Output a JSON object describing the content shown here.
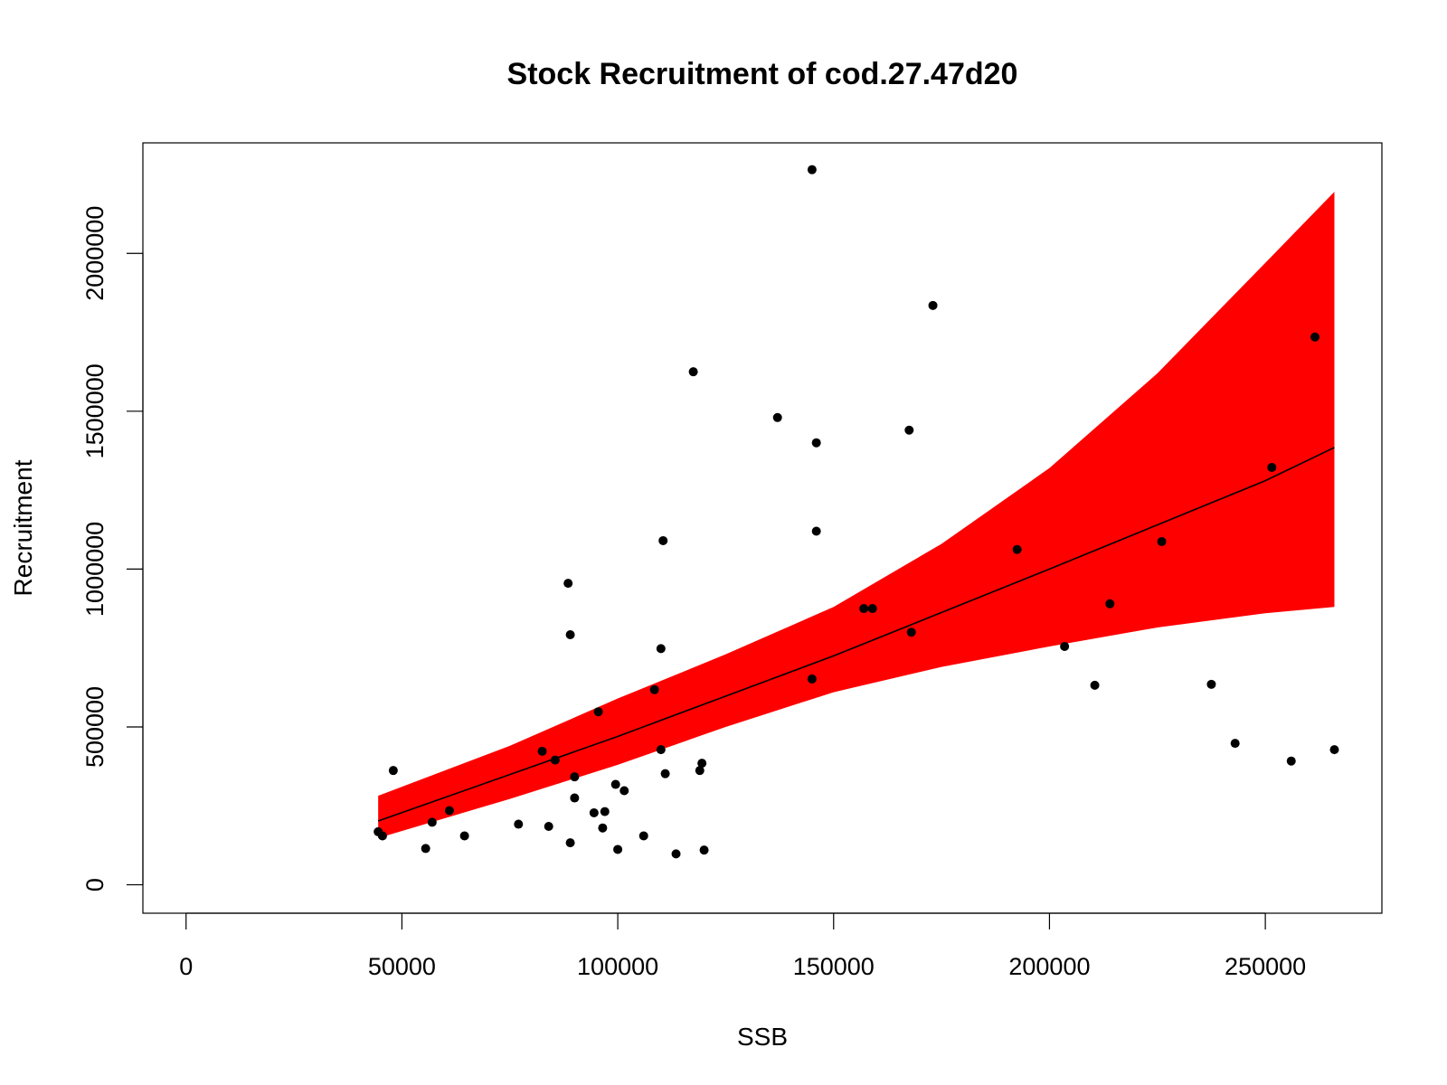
{
  "chart_data": {
    "type": "scatter",
    "title": "Stock Recruitment of cod.27.47d20",
    "xlabel": "SSB",
    "ylabel": "Recruitment",
    "xlim": [
      -10000,
      277000
    ],
    "ylim": [
      -90000,
      2350000
    ],
    "x_ticks": [
      0,
      50000,
      100000,
      150000,
      200000,
      250000
    ],
    "x_tick_labels": [
      "0",
      "50000",
      "100000",
      "150000",
      "200000",
      "250000"
    ],
    "y_ticks": [
      0,
      500000,
      1000000,
      1500000,
      2000000
    ],
    "y_tick_labels": [
      "0",
      "500000",
      "1000000",
      "1500000",
      "2000000"
    ],
    "grid": false,
    "legend": "none",
    "band_color": "#ff0000",
    "point_color": "#000000",
    "line_color": "#000000",
    "points": [
      {
        "x": 44500,
        "y": 168000
      },
      {
        "x": 45500,
        "y": 155000
      },
      {
        "x": 48000,
        "y": 362000
      },
      {
        "x": 55500,
        "y": 115000
      },
      {
        "x": 57000,
        "y": 198000
      },
      {
        "x": 61000,
        "y": 235000
      },
      {
        "x": 64500,
        "y": 155000
      },
      {
        "x": 77000,
        "y": 192000
      },
      {
        "x": 82500,
        "y": 423000
      },
      {
        "x": 84000,
        "y": 185000
      },
      {
        "x": 85500,
        "y": 395000
      },
      {
        "x": 88500,
        "y": 955000
      },
      {
        "x": 89000,
        "y": 792000
      },
      {
        "x": 89000,
        "y": 133000
      },
      {
        "x": 90000,
        "y": 342000
      },
      {
        "x": 90000,
        "y": 275000
      },
      {
        "x": 94500,
        "y": 228000
      },
      {
        "x": 95500,
        "y": 548000
      },
      {
        "x": 96500,
        "y": 180000
      },
      {
        "x": 97000,
        "y": 232000
      },
      {
        "x": 99500,
        "y": 318000
      },
      {
        "x": 100000,
        "y": 112000
      },
      {
        "x": 101500,
        "y": 298000
      },
      {
        "x": 106000,
        "y": 155000
      },
      {
        "x": 108500,
        "y": 618000
      },
      {
        "x": 110000,
        "y": 748000
      },
      {
        "x": 110000,
        "y": 428000
      },
      {
        "x": 110500,
        "y": 1090000
      },
      {
        "x": 111000,
        "y": 352000
      },
      {
        "x": 113500,
        "y": 98000
      },
      {
        "x": 117500,
        "y": 1625000
      },
      {
        "x": 119000,
        "y": 362000
      },
      {
        "x": 119500,
        "y": 385000
      },
      {
        "x": 120000,
        "y": 110000
      },
      {
        "x": 137000,
        "y": 1480000
      },
      {
        "x": 145000,
        "y": 2265000
      },
      {
        "x": 145000,
        "y": 652000
      },
      {
        "x": 146000,
        "y": 1400000
      },
      {
        "x": 146000,
        "y": 1120000
      },
      {
        "x": 157000,
        "y": 875000
      },
      {
        "x": 159000,
        "y": 875000
      },
      {
        "x": 167500,
        "y": 1440000
      },
      {
        "x": 168000,
        "y": 800000
      },
      {
        "x": 173000,
        "y": 1835000
      },
      {
        "x": 192500,
        "y": 1062000
      },
      {
        "x": 203500,
        "y": 755000
      },
      {
        "x": 210500,
        "y": 632000
      },
      {
        "x": 214000,
        "y": 890000
      },
      {
        "x": 226000,
        "y": 1087000
      },
      {
        "x": 237500,
        "y": 635000
      },
      {
        "x": 243000,
        "y": 448000
      },
      {
        "x": 251500,
        "y": 1322000
      },
      {
        "x": 256000,
        "y": 392000
      },
      {
        "x": 261500,
        "y": 1735000
      },
      {
        "x": 266000,
        "y": 428000
      }
    ],
    "fit_line": [
      {
        "x": 44500,
        "y": 202000
      },
      {
        "x": 100000,
        "y": 470000
      },
      {
        "x": 150000,
        "y": 725000
      },
      {
        "x": 200000,
        "y": 1000000
      },
      {
        "x": 250000,
        "y": 1280000
      },
      {
        "x": 266000,
        "y": 1385000
      }
    ],
    "band_upper": [
      {
        "x": 44500,
        "y": 282000
      },
      {
        "x": 75000,
        "y": 440000
      },
      {
        "x": 100000,
        "y": 590000
      },
      {
        "x": 125000,
        "y": 730000
      },
      {
        "x": 150000,
        "y": 880000
      },
      {
        "x": 175000,
        "y": 1080000
      },
      {
        "x": 200000,
        "y": 1320000
      },
      {
        "x": 225000,
        "y": 1620000
      },
      {
        "x": 250000,
        "y": 1970000
      },
      {
        "x": 266000,
        "y": 2195000
      }
    ],
    "band_lower": [
      {
        "x": 44500,
        "y": 148000
      },
      {
        "x": 75000,
        "y": 272000
      },
      {
        "x": 100000,
        "y": 380000
      },
      {
        "x": 125000,
        "y": 500000
      },
      {
        "x": 150000,
        "y": 610000
      },
      {
        "x": 175000,
        "y": 690000
      },
      {
        "x": 200000,
        "y": 755000
      },
      {
        "x": 225000,
        "y": 815000
      },
      {
        "x": 250000,
        "y": 860000
      },
      {
        "x": 266000,
        "y": 880000
      }
    ]
  }
}
